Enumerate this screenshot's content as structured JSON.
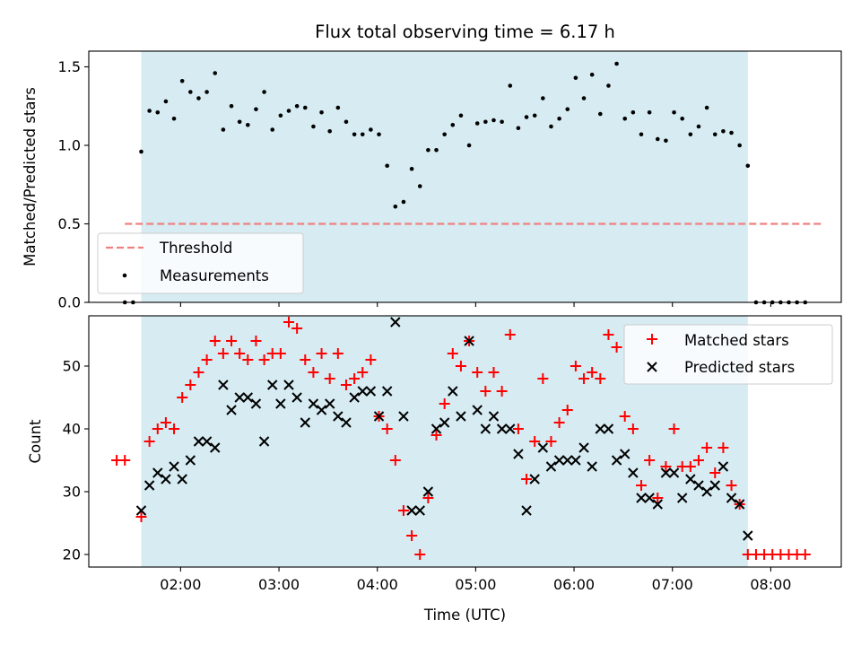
{
  "chart_data": [
    {
      "type": "scatter",
      "title": "Flux total observing time = 6.17 h",
      "ylabel": "Matched/Predicted stars",
      "xlim": [
        "01:04",
        "08:43"
      ],
      "ylim": [
        0,
        1.6
      ],
      "yticks": [
        "0.0",
        "0.5",
        "1.0",
        "1.5"
      ],
      "observing_window": [
        "01:36",
        "07:46"
      ],
      "window_color": "#add8e6",
      "legend_position": "lower-left",
      "series": [
        {
          "name": "Threshold",
          "style": "dashed-line",
          "color": "#f08080",
          "x": [
            "01:26",
            "08:32"
          ],
          "y": [
            0.5,
            0.5
          ]
        },
        {
          "name": "Measurements",
          "style": "dot",
          "color": "#000000",
          "x": [
            "01:26",
            "01:31",
            "01:36",
            "01:41",
            "01:46",
            "01:51",
            "01:56",
            "02:01",
            "02:06",
            "02:11",
            "02:16",
            "02:21",
            "02:26",
            "02:31",
            "02:36",
            "02:41",
            "02:46",
            "02:51",
            "02:56",
            "03:01",
            "03:06",
            "03:11",
            "03:16",
            "03:21",
            "03:26",
            "03:31",
            "03:36",
            "03:41",
            "03:46",
            "03:51",
            "03:56",
            "04:01",
            "04:06",
            "04:11",
            "04:16",
            "04:21",
            "04:26",
            "04:31",
            "04:36",
            "04:41",
            "04:46",
            "04:51",
            "04:56",
            "05:01",
            "05:06",
            "05:11",
            "05:16",
            "05:21",
            "05:26",
            "05:31",
            "05:36",
            "05:41",
            "05:46",
            "05:51",
            "05:56",
            "06:01",
            "06:06",
            "06:11",
            "06:16",
            "06:21",
            "06:26",
            "06:31",
            "06:36",
            "06:41",
            "06:46",
            "06:51",
            "06:56",
            "07:01",
            "07:06",
            "07:11",
            "07:16",
            "07:21",
            "07:26",
            "07:31",
            "07:36",
            "07:41",
            "07:46",
            "07:51",
            "07:56",
            "08:01",
            "08:06",
            "08:11",
            "08:16",
            "08:21"
          ],
          "y": [
            0,
            0,
            0.96,
            1.22,
            1.21,
            1.28,
            1.17,
            1.41,
            1.34,
            1.3,
            1.34,
            1.46,
            1.1,
            1.25,
            1.15,
            1.13,
            1.23,
            1.34,
            1.1,
            1.19,
            1.22,
            1.25,
            1.24,
            1.12,
            1.21,
            1.09,
            1.24,
            1.15,
            1.07,
            1.07,
            1.1,
            1.07,
            0.87,
            0.61,
            0.64,
            0.85,
            0.74,
            0.97,
            0.97,
            1.07,
            1.13,
            1.19,
            1.0,
            1.14,
            1.15,
            1.16,
            1.15,
            1.38,
            1.11,
            1.18,
            1.19,
            1.3,
            1.12,
            1.17,
            1.23,
            1.43,
            1.3,
            1.45,
            1.2,
            1.38,
            1.52,
            1.17,
            1.21,
            1.07,
            1.21,
            1.04,
            1.03,
            1.21,
            1.17,
            1.07,
            1.12,
            1.24,
            1.07,
            1.09,
            1.08,
            1.0,
            0.87,
            0,
            0,
            0,
            0,
            0,
            0,
            0
          ]
        }
      ]
    },
    {
      "type": "scatter",
      "xlabel": "Time (UTC)",
      "ylabel": "Count",
      "xlim": [
        "01:04",
        "08:43"
      ],
      "ylim": [
        18,
        58
      ],
      "xticks": [
        "02:00",
        "03:00",
        "04:00",
        "05:00",
        "06:00",
        "07:00",
        "08:00"
      ],
      "yticks": [
        "20",
        "30",
        "40",
        "50"
      ],
      "observing_window": [
        "01:36",
        "07:46"
      ],
      "window_color": "#add8e6",
      "legend_position": "upper-right",
      "series": [
        {
          "name": "Matched stars",
          "style": "plus",
          "color": "#ff0000",
          "x": [
            "01:21",
            "01:26",
            "01:36",
            "01:41",
            "01:46",
            "01:51",
            "01:56",
            "02:01",
            "02:06",
            "02:11",
            "02:16",
            "02:21",
            "02:26",
            "02:31",
            "02:36",
            "02:41",
            "02:46",
            "02:51",
            "02:56",
            "03:01",
            "03:06",
            "03:11",
            "03:16",
            "03:21",
            "03:26",
            "03:31",
            "03:36",
            "03:41",
            "03:46",
            "03:51",
            "03:56",
            "04:01",
            "04:06",
            "04:11",
            "04:16",
            "04:21",
            "04:26",
            "04:31",
            "04:36",
            "04:41",
            "04:46",
            "04:51",
            "04:56",
            "05:01",
            "05:06",
            "05:11",
            "05:16",
            "05:21",
            "05:26",
            "05:31",
            "05:36",
            "05:41",
            "05:46",
            "05:51",
            "05:56",
            "06:01",
            "06:06",
            "06:11",
            "06:16",
            "06:21",
            "06:26",
            "06:31",
            "06:36",
            "06:41",
            "06:46",
            "06:51",
            "06:56",
            "07:01",
            "07:06",
            "07:11",
            "07:16",
            "07:21",
            "07:26",
            "07:31",
            "07:36",
            "07:41",
            "07:46",
            "07:51",
            "07:56",
            "08:01",
            "08:06",
            "08:11",
            "08:16",
            "08:21"
          ],
          "y": [
            35,
            35,
            26,
            38,
            40,
            41,
            40,
            45,
            47,
            49,
            51,
            54,
            52,
            54,
            52,
            51,
            54,
            51,
            52,
            52,
            57,
            56,
            51,
            49,
            52,
            48,
            52,
            47,
            48,
            49,
            51,
            42,
            40,
            35,
            27,
            23,
            20,
            29,
            39,
            44,
            52,
            50,
            54,
            49,
            46,
            49,
            46,
            55,
            40,
            32,
            38,
            48,
            38,
            41,
            43,
            50,
            48,
            49,
            48,
            55,
            53,
            42,
            40,
            31,
            35,
            29,
            34,
            40,
            34,
            34,
            35,
            37,
            33,
            37,
            31,
            28,
            20,
            20,
            20,
            20,
            20,
            20,
            20,
            20
          ]
        },
        {
          "name": "Predicted stars",
          "style": "x",
          "color": "#000000",
          "x": [
            "01:36",
            "01:41",
            "01:46",
            "01:51",
            "01:56",
            "02:01",
            "02:06",
            "02:11",
            "02:16",
            "02:21",
            "02:26",
            "02:31",
            "02:36",
            "02:41",
            "02:46",
            "02:51",
            "02:56",
            "03:01",
            "03:06",
            "03:11",
            "03:16",
            "03:21",
            "03:26",
            "03:31",
            "03:36",
            "03:41",
            "03:46",
            "03:51",
            "03:56",
            "04:01",
            "04:06",
            "04:11",
            "04:16",
            "04:21",
            "04:26",
            "04:31",
            "04:36",
            "04:41",
            "04:46",
            "04:51",
            "04:56",
            "05:01",
            "05:06",
            "05:11",
            "05:16",
            "05:21",
            "05:26",
            "05:31",
            "05:36",
            "05:41",
            "05:46",
            "05:51",
            "05:56",
            "06:01",
            "06:06",
            "06:11",
            "06:16",
            "06:21",
            "06:26",
            "06:31",
            "06:36",
            "06:41",
            "06:46",
            "06:51",
            "06:56",
            "07:01",
            "07:06",
            "07:11",
            "07:16",
            "07:21",
            "07:26",
            "07:31",
            "07:36",
            "07:41",
            "07:46"
          ],
          "y": [
            27,
            31,
            33,
            32,
            34,
            32,
            35,
            38,
            38,
            37,
            47,
            43,
            45,
            45,
            44,
            38,
            47,
            44,
            47,
            45,
            41,
            44,
            43,
            44,
            42,
            41,
            45,
            46,
            46,
            42,
            46,
            57,
            42,
            27,
            27,
            30,
            40,
            41,
            46,
            42,
            54,
            43,
            40,
            42,
            40,
            40,
            36,
            27,
            32,
            37,
            34,
            35,
            35,
            35,
            37,
            34,
            40,
            40,
            35,
            36,
            33,
            29,
            29,
            28,
            33,
            33,
            29,
            32,
            31,
            30,
            31,
            34,
            29,
            28,
            23
          ]
        }
      ]
    }
  ]
}
